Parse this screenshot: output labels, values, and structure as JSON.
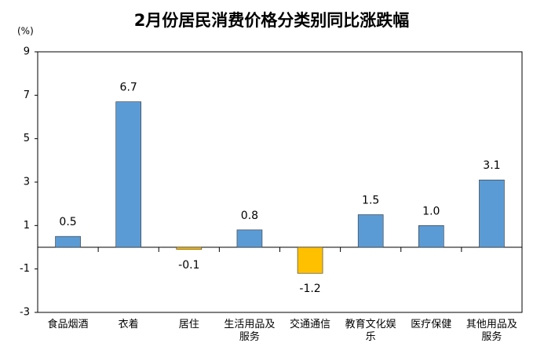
{
  "chart_data": {
    "type": "bar",
    "title": "2月份居民消费价格分类别同比涨跌幅",
    "y_label": "(%)",
    "categories": [
      "食品烟酒",
      "衣着",
      "居住",
      "生活用品及服务",
      "交通通信",
      "教育文化娱乐",
      "医疗保健",
      "其他用品及服务"
    ],
    "values": [
      0.5,
      6.7,
      -0.1,
      0.8,
      -1.2,
      1.5,
      1.0,
      3.1
    ],
    "value_labels": [
      "0.5",
      "6.7",
      "-0.1",
      "0.8",
      "-1.2",
      "1.5",
      "1.0",
      "3.1"
    ],
    "colors": [
      "#5b9bd5",
      "#5b9bd5",
      "#ffc000",
      "#5b9bd5",
      "#ffc000",
      "#5b9bd5",
      "#5b9bd5",
      "#5b9bd5"
    ],
    "ylim": [
      -3,
      9
    ],
    "yticks": [
      -3,
      -1,
      1,
      3,
      5,
      7,
      9
    ],
    "grid": false
  }
}
